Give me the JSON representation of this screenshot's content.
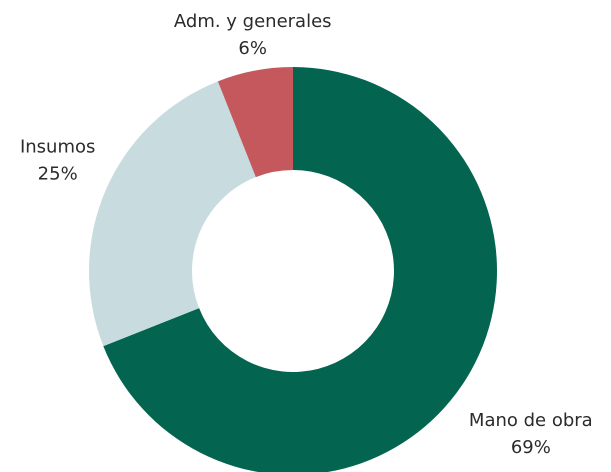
{
  "chart_data": {
    "type": "pie",
    "categories": [
      "Mano de obra",
      "Insumos",
      "Adm. y generales"
    ],
    "values": [
      69,
      25,
      6
    ],
    "value_labels": [
      "69%",
      "25%",
      "6%"
    ],
    "colors": [
      "#03654f",
      "#c8dce0",
      "#c4585c"
    ],
    "donut": true
  }
}
